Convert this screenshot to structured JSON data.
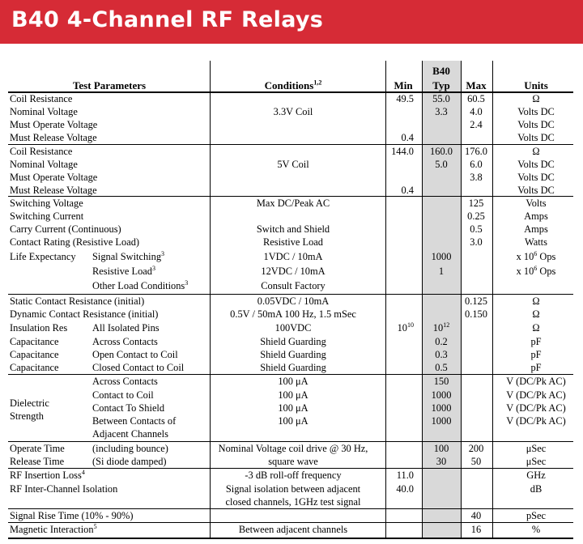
{
  "title": "B40 4-Channel RF Relays",
  "header": {
    "test_parameters": "Test Parameters",
    "conditions": "Conditions",
    "conditions_sup": "1,2",
    "min": "Min",
    "b40": "B40",
    "typ": "Typ",
    "max": "Max",
    "units": "Units"
  },
  "rows": [
    {
      "label": "Coil Resistance",
      "min": "49.5",
      "typ": "55.0",
      "max": "60.5",
      "unit": "Ω"
    },
    {
      "label": "Nominal Voltage",
      "cond": "3.3V Coil",
      "typ": "3.3",
      "max": "4.0",
      "unit": "Volts DC"
    },
    {
      "label": "Must Operate Voltage",
      "max": "2.4",
      "unit": "Volts DC"
    },
    {
      "label": "Must Release Voltage",
      "min": "0.4",
      "unit": "Volts DC"
    },
    {
      "label": "Coil Resistance",
      "min": "144.0",
      "typ": "160.0",
      "max": "176.0",
      "unit": "Ω"
    },
    {
      "label": "Nominal Voltage",
      "cond": "5V Coil",
      "typ": "5.0",
      "max": "6.0",
      "unit": "Volts DC"
    },
    {
      "label": "Must Operate Voltage",
      "max": "3.8",
      "unit": "Volts DC"
    },
    {
      "label": "Must Release Voltage",
      "min": "0.4",
      "unit": "Volts DC"
    },
    {
      "label": "Switching Voltage",
      "cond": "Max DC/Peak AC",
      "max": "125",
      "unit": "Volts"
    },
    {
      "label": "Switching Current",
      "max": "0.25",
      "unit": "Amps"
    },
    {
      "label": "Carry Current (Continuous)",
      "cond": "Switch and Shield",
      "max": "0.5",
      "unit": "Amps"
    },
    {
      "label": "Contact Rating (Resistive Load)",
      "cond": "Resistive Load",
      "max": "3.0",
      "unit": "Watts"
    },
    {
      "label": "Life Expectancy",
      "sub": "Signal Switching",
      "sub_sup": "3",
      "cond": "1VDC / 10mA",
      "typ": "1000",
      "unit": "x 10",
      "unit_sup": "6",
      "unit_tail": " Ops"
    },
    {
      "sub": "Resistive Load",
      "sub_sup": "3",
      "cond": "12VDC / 10mA",
      "typ": "1",
      "unit": "x 10",
      "unit_sup": "6",
      "unit_tail": " Ops"
    },
    {
      "sub": "Other Load Conditions",
      "sub_sup": "3",
      "cond": "Consult Factory"
    },
    {
      "label": "Static Contact Resistance (initial)",
      "cond": "0.05VDC / 10mA",
      "max": "0.125",
      "unit": "Ω"
    },
    {
      "label": "Dynamic Contact Resistance (initial)",
      "cond": "0.5V / 50mA 100 Hz, 1.5 mSec",
      "max": "0.150",
      "unit": "Ω"
    },
    {
      "label": "Insulation Res",
      "sub": "All Isolated Pins",
      "cond": "100VDC",
      "min": "10",
      "min_sup": "10",
      "typ": "10",
      "typ_sup": "12",
      "unit": "Ω"
    },
    {
      "label": "Capacitance",
      "sub": "Across Contacts",
      "cond": "Shield Guarding",
      "typ": "0.2",
      "unit": "pF"
    },
    {
      "label": "Capacitance",
      "sub": "Open Contact to Coil",
      "cond": "Shield Guarding",
      "typ": "0.3",
      "unit": "pF"
    },
    {
      "label": "Capacitance",
      "sub": "Closed Contact to Coil",
      "cond": "Shield Guarding",
      "typ": "0.5",
      "unit": "pF"
    },
    {
      "sub": "Across Contacts",
      "cond": "100 μA",
      "typ": "150",
      "unit": "V (DC/Pk AC)"
    },
    {
      "sub": "Contact to Coil",
      "cond": "100 μA",
      "typ": "1000",
      "unit": "V (DC/Pk AC)"
    },
    {
      "sub": "Contact To Shield",
      "cond": "100 μA",
      "typ": "1000",
      "unit": "V (DC/Pk AC)"
    },
    {
      "sub": "Between Contacts of",
      "cond": "100 μA",
      "typ": "1000",
      "unit": "V (DC/Pk AC)"
    },
    {
      "sub": "Adjacent Channels"
    },
    {
      "label": "Operate Time",
      "sub": "(including bounce)",
      "cond": "Nominal Voltage coil drive @ 30 Hz,",
      "typ": "100",
      "max": "200",
      "unit": "μSec"
    },
    {
      "label": "Release Time",
      "sub": "(Si diode damped)",
      "cond": "square wave",
      "typ": "30",
      "max": "50",
      "unit": "μSec"
    },
    {
      "label": "RF Insertion Loss",
      "label_sup": "4",
      "cond": "-3 dB roll-off frequency",
      "min": "11.0",
      "unit": "GHz"
    },
    {
      "label": "RF Inter-Channel Isolation",
      "cond": "Signal isolation between adjacent",
      "min": "40.0",
      "unit": "dB"
    },
    {
      "cond": "closed channels, 1GHz test signal"
    },
    {
      "label": "Signal Rise Time  (10% - 90%)",
      "max": "40",
      "unit": "pSec"
    },
    {
      "label": "Magnetic Interaction",
      "label_sup": "5",
      "cond": "Between adjacent channels",
      "max": "16",
      "unit": "%"
    }
  ],
  "dielectric_strength": {
    "line1": "Dielectric",
    "line2": "Strength"
  }
}
